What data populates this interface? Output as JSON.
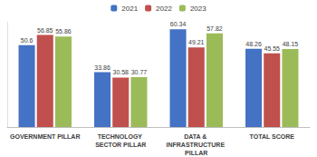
{
  "chart_data": {
    "type": "bar",
    "categories": [
      "GOVERNMENT PILLAR",
      "TECHNOLOGY SECTOR PILLAR",
      "DATA & INFRASTRUCTURE PILLAR",
      "TOTAL SCORE"
    ],
    "series": [
      {
        "name": "2021",
        "color": "#4472c4",
        "values": [
          50.6,
          33.86,
          60.34,
          48.26
        ]
      },
      {
        "name": "2022",
        "color": "#c0504d",
        "values": [
          56.85,
          30.58,
          49.21,
          45.55
        ]
      },
      {
        "name": "2023",
        "color": "#9bbb59",
        "values": [
          55.86,
          30.77,
          57.82,
          48.15
        ]
      }
    ],
    "ylim": [
      0,
      65
    ],
    "grid": false,
    "legend": "top",
    "data_labels": true,
    "tick_labels": "x"
  }
}
